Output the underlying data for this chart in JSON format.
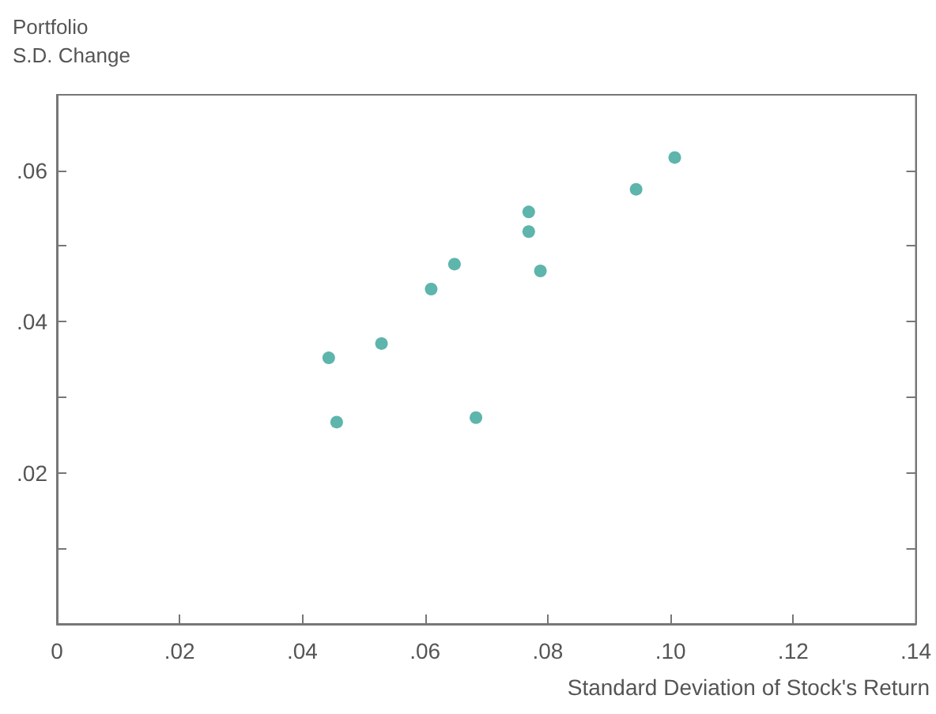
{
  "chart_data": {
    "type": "scatter",
    "xlabel": "Standard Deviation of Stock's Return",
    "ylabel": "Portfolio\nS.D. Change",
    "x": [
      0.1007,
      0.0944,
      0.0769,
      0.0769,
      0.0788,
      0.0648,
      0.061,
      0.0529,
      0.0443,
      0.0456,
      0.0683
    ],
    "series": [
      {
        "color": "#35a397",
        "values": [
          0.0617,
          0.0575,
          0.0545,
          0.0519,
          0.0467,
          0.0476,
          0.0443,
          0.0371,
          0.0352,
          0.0267,
          0.0273
        ]
      }
    ],
    "xlim": [
      0,
      0.14
    ],
    "xticks": [
      0,
      {
        "value": 0.02,
        "label": ".02"
      },
      {
        "value": 0.04,
        "label": ".04"
      },
      {
        "value": 0.06,
        "label": ".06"
      },
      {
        "value": 0.08,
        "label": ".08"
      },
      {
        "value": 0.1,
        "label": ".10"
      },
      {
        "value": 0.12,
        "label": ".12"
      },
      {
        "value": 0.14,
        "label": ".14"
      }
    ],
    "ylim": [
      0,
      0.07
    ],
    "yticks": [
      {
        "value": 0.01,
        "label": null
      },
      {
        "value": 0.02,
        "label": ".02"
      },
      {
        "value": 0.03,
        "label": null
      },
      {
        "value": 0.04,
        "label": ".04"
      },
      {
        "value": 0.05,
        "label": null
      },
      {
        "value": 0.06,
        "label": ".06"
      }
    ],
    "marker": "circle"
  }
}
